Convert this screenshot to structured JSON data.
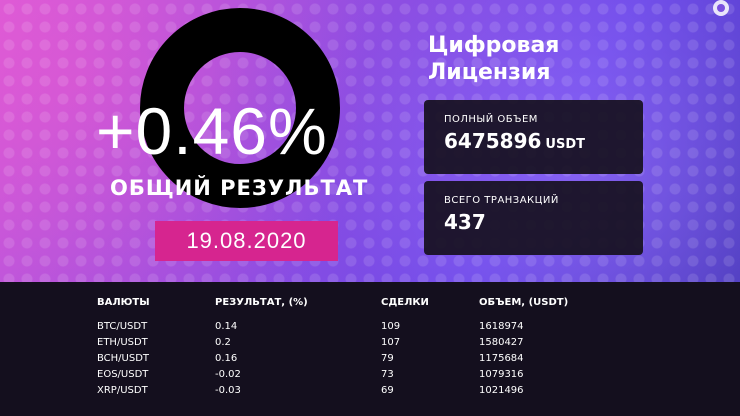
{
  "hero": {
    "percent": "+0.46%",
    "subtitle": "ОБЩИЙ РЕЗУЛЬТАТ",
    "date": "19.08.2020"
  },
  "brand": {
    "title_line1": "Цифровая",
    "title_line2": "Лицензия"
  },
  "cards": {
    "total_volume_label": "ПОЛНЫЙ ОБЪЕМ",
    "total_volume_value": "6475896",
    "total_volume_unit": "USDT",
    "transactions_label": "ВСЕГО ТРАНЗАКЦИЙ",
    "transactions_value": "437"
  },
  "table": {
    "headers": [
      "ВАЛЮТЫ",
      "РЕЗУЛЬТАТ, (%)",
      "СДЕЛКИ",
      "ОБЪЕМ, (USDT)"
    ],
    "rows": [
      [
        "BTC/USDT",
        "0.14",
        "109",
        "1618974"
      ],
      [
        "ETH/USDT",
        "0.2",
        "107",
        "1580427"
      ],
      [
        "BCH/USDT",
        "0.16",
        "79",
        "1175684"
      ],
      [
        "EOS/USDT",
        "-0.02",
        "73",
        "1079316"
      ],
      [
        "XRP/USDT",
        "-0.03",
        "69",
        "1021496"
      ]
    ]
  },
  "colors": {
    "badge": "#d6258f",
    "panel": "#140f1e",
    "ring": "#000000"
  },
  "icons": [
    "corner-brand-icon"
  ]
}
